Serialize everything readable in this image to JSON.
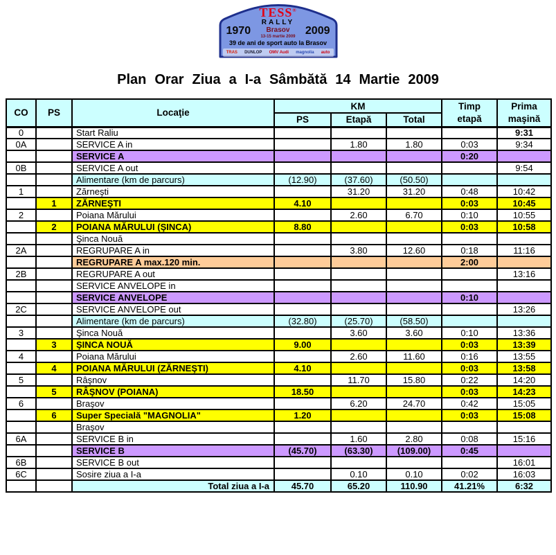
{
  "plate": {
    "name": "TESS",
    "reg": "®",
    "series": "RALLY",
    "year_left": "1970",
    "year_right": "2009",
    "city": "Brasov",
    "dates": "13-15 martie 2009",
    "tagline": "39 de ani de sport auto la Brasov",
    "sponsors": [
      {
        "label": "TRAS",
        "color": "#d81e05"
      },
      {
        "label": "DUNLOP",
        "color": "#1a1a30"
      },
      {
        "label": "OMV Audi",
        "color": "#cc0010"
      },
      {
        "label": "magnolia",
        "color": "#2b4bb3"
      },
      {
        "label": "auto",
        "color": "#cc0010"
      }
    ],
    "colors": {
      "plate_fill": "#7d97e3",
      "plate_border": "#1e2f8c"
    }
  },
  "title": "Plan Orar Ziua a I-a Sâmbătă 14 Martie 2009",
  "table": {
    "header": {
      "co": "CO",
      "ps": "PS",
      "locatie": "Locaţie",
      "km": "KM",
      "km_ps": "PS",
      "km_etapa": "Etapă",
      "km_total": "Total",
      "timp": "Timp\netapă",
      "prima": "Prima\nmaşină"
    },
    "colors": {
      "header_bg": "#ccffff",
      "stage_row": "#ffff00",
      "service_row": "#cc99ff",
      "regroup_row": "#ffcc99",
      "info_row": "#ccffff"
    },
    "rows": [
      {
        "co": "0",
        "loc": "Start Raliu",
        "prima": "9:31",
        "prima_bold": true
      },
      {
        "co": "0A",
        "loc": "SERVICE A in",
        "km_etapa": "1.80",
        "km_total": "1.80",
        "timp": "0:03",
        "prima": "9:34"
      },
      {
        "loc": "SERVICE A",
        "timp": "0:20",
        "style": "purple"
      },
      {
        "co": "0B",
        "loc": "SERVICE A out",
        "prima": "9:54"
      },
      {
        "loc": "Alimentare (km de parcurs)",
        "km_ps": "(12.90)",
        "km_etapa": "(37.60)",
        "km_total": "(50.50)",
        "style": "cyan"
      },
      {
        "co": "1",
        "loc": "Zărneşti",
        "km_etapa": "31.20",
        "km_total": "31.20",
        "timp": "0:48",
        "prima": "10:42"
      },
      {
        "ps": "1",
        "loc": "ZĂRNEŞTI",
        "km_ps": "4.10",
        "timp": "0:03",
        "prima": "10:45",
        "style": "yellow"
      },
      {
        "co": "2",
        "loc": "Poiana Mărului",
        "km_etapa": "2.60",
        "km_total": "6.70",
        "timp": "0:10",
        "prima": "10:55"
      },
      {
        "ps": "2",
        "loc": "POIANA MĂRULUI (ŞINCA)",
        "km_ps": "8.80",
        "timp": "0:03",
        "prima": "10:58",
        "style": "yellow"
      },
      {
        "loc": "Şinca Nouă"
      },
      {
        "co": "2A",
        "loc": "REGRUPARE A in",
        "km_etapa": "3.80",
        "km_total": "12.60",
        "timp": "0:18",
        "prima": "11:16"
      },
      {
        "loc": "REGRUPARE A max.120 min.",
        "timp": "2:00",
        "style": "orange"
      },
      {
        "co": "2B",
        "loc": "REGRUPARE A out",
        "prima": "13:16"
      },
      {
        "loc": "SERVICE ANVELOPE in"
      },
      {
        "loc": "SERVICE ANVELOPE",
        "timp": "0:10",
        "style": "purple"
      },
      {
        "co": "2C",
        "loc": "SERVICE ANVELOPE out",
        "prima": "13:26"
      },
      {
        "loc": "Alimentare (km de parcurs)",
        "km_ps": "(32.80)",
        "km_etapa": "(25.70)",
        "km_total": "(58.50)",
        "style": "cyan"
      },
      {
        "co": "3",
        "loc": "Şinca Nouă",
        "km_etapa": "3.60",
        "km_total": "3.60",
        "timp": "0:10",
        "prima": "13:36"
      },
      {
        "ps": "3",
        "loc": "ŞINCA NOUĂ",
        "km_ps": "9.00",
        "timp": "0:03",
        "prima": "13:39",
        "style": "yellow"
      },
      {
        "co": "4",
        "loc": "Poiana Mărului",
        "km_etapa": "2.60",
        "km_total": "11.60",
        "timp": "0:16",
        "prima": "13:55"
      },
      {
        "ps": "4",
        "loc": "POIANA MĂRULUI (ZĂRNEŞTI)",
        "km_ps": "4.10",
        "timp": "0:03",
        "prima": "13:58",
        "style": "yellow"
      },
      {
        "co": "5",
        "loc": "Râşnov",
        "km_etapa": "11.70",
        "km_total": "15.80",
        "timp": "0:22",
        "prima": "14:20"
      },
      {
        "ps": "5",
        "loc": "RÂŞNOV (POIANA)",
        "km_ps": "18.50",
        "timp": "0:03",
        "prima": "14:23",
        "style": "yellow"
      },
      {
        "co": "6",
        "loc": "Braşov",
        "km_etapa": "6.20",
        "km_total": "24.70",
        "timp": "0:42",
        "prima": "15:05"
      },
      {
        "ps": "6",
        "loc": "Super Specială \"MAGNOLIA\"",
        "km_ps": "1.20",
        "timp": "0:03",
        "prima": "15:08",
        "style": "yellow"
      },
      {
        "loc": "Braşov"
      },
      {
        "co": "6A",
        "loc": "SERVICE B in",
        "km_etapa": "1.60",
        "km_total": "2.80",
        "timp": "0:08",
        "prima": "15:16"
      },
      {
        "loc": "SERVICE B",
        "km_ps": "(45.70)",
        "km_etapa": "(63.30)",
        "km_total": "(109.00)",
        "timp": "0:45",
        "style": "purple"
      },
      {
        "co": "6B",
        "loc": "SERVICE B out",
        "prima": "16:01"
      },
      {
        "co": "6C",
        "loc": "Sosire ziua a I-a",
        "km_etapa": "0.10",
        "km_total": "0.10",
        "timp": "0:02",
        "prima": "16:03"
      },
      {
        "loc": "Total ziua a I-a",
        "km_ps": "45.70",
        "km_etapa": "65.20",
        "km_total": "110.90",
        "timp": "41.21%",
        "prima": "6:32",
        "style": "total"
      }
    ]
  }
}
